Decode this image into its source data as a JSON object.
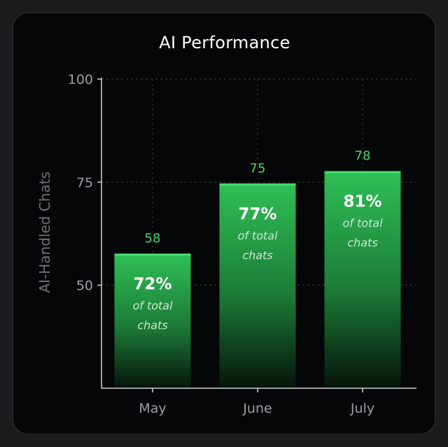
{
  "chart_data": {
    "type": "bar",
    "title": "AI Performance",
    "xlabel": "",
    "ylabel": "AI-Handled Chats",
    "categories": [
      "May",
      "June",
      "July"
    ],
    "values": [
      58,
      75,
      78
    ],
    "value_labels": [
      "58",
      "75",
      "78"
    ],
    "share_labels": [
      "72%",
      "77%",
      "81%"
    ],
    "share_caption_line1": "of total",
    "share_caption_line2": "chats",
    "ylim": [
      25,
      100
    ],
    "yticks": [
      50,
      75,
      100
    ],
    "grid": true,
    "bar_color": "#2fbf55",
    "value_label_color": "#3ddc6a"
  }
}
